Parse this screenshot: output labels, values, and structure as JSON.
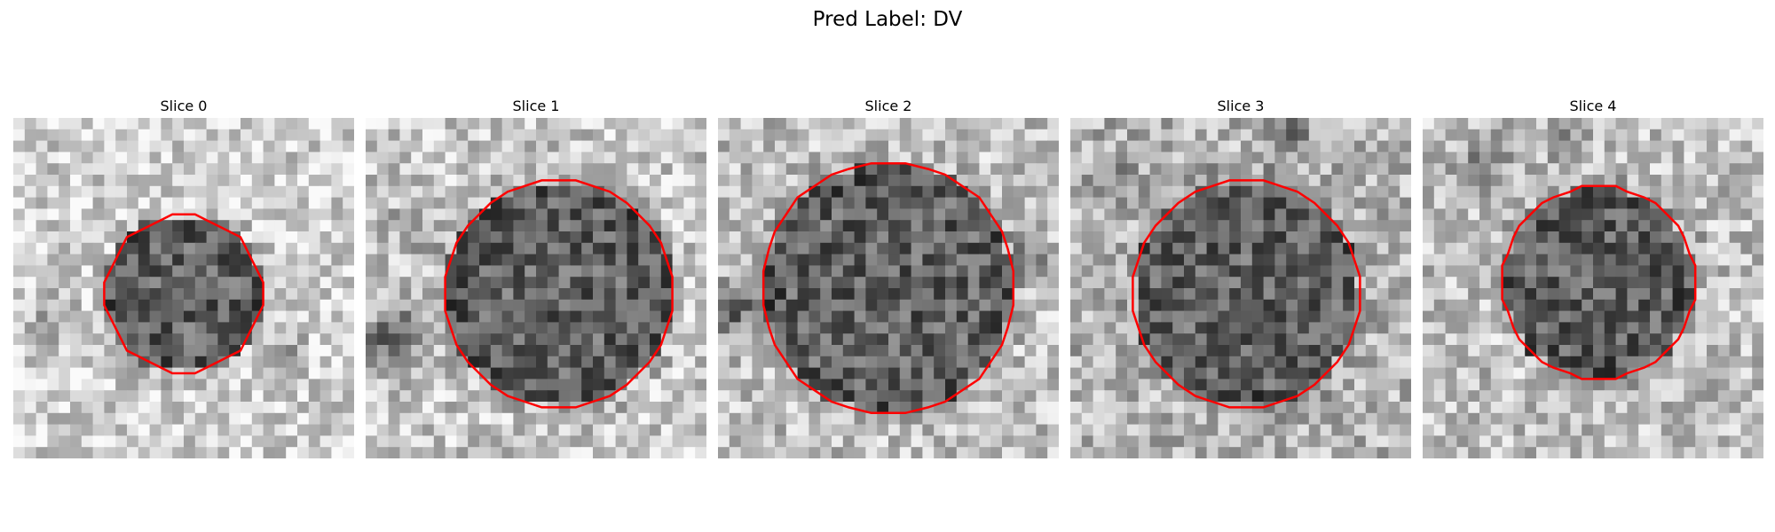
{
  "figure": {
    "title": "Pred Label: DV",
    "contour_color": "#ff0000"
  },
  "slices": [
    {
      "title": "Slice 0"
    },
    {
      "title": "Slice 1"
    },
    {
      "title": "Slice 2"
    },
    {
      "title": "Slice 3"
    },
    {
      "title": "Slice 4"
    }
  ]
}
